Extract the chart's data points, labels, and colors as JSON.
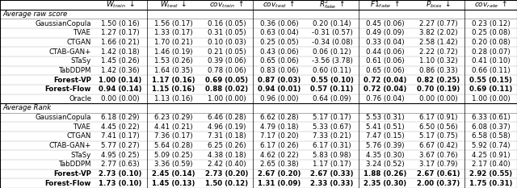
{
  "section1_label": "Average raw score",
  "section2_label": "Average Rank",
  "col_headers": [
    "",
    "W_train",
    "W_test",
    "cov_train",
    "cov_test",
    "R2_fake",
    "F1_fake",
    "P_bias",
    "cov_rate"
  ],
  "rows_section1": [
    [
      "GaussianCopula",
      "1.50 (0.16)",
      "1.56 (0.17)",
      "0.16 (0.05)",
      "0.36 (0.06)",
      "0.20 (0.14)",
      "0.45 (0.06)",
      "2.27 (0.77)",
      "0.23 (0.12)"
    ],
    [
      "TVAE",
      "1.27 (0.17)",
      "1.33 (0.17)",
      "0.31 (0.05)",
      "0.63 (0.04)",
      "-0.31 (0.57)",
      "0.49 (0.09)",
      "3.82 (2.02)",
      "0.25 (0.08)"
    ],
    [
      "CTGAN",
      "1.66 (0.21)",
      "1.70 (0.21)",
      "0.10 (0.03)",
      "0.25 (0.05)",
      "-0.34 (0.08)",
      "0.33 (0.04)",
      "2.58 (1.42)",
      "0.20 (0.08)"
    ],
    [
      "CTAB-GAN+",
      "1.42 (0.18)",
      "1.46 (0.19)",
      "0.21 (0.05)",
      "0.43 (0.06)",
      "0.06 (0.12)",
      "0.44 (0.06)",
      "2.22 (0.72)",
      "0.28 (0.07)"
    ],
    [
      "STaSy",
      "1.45 (0.26)",
      "1.53 (0.26)",
      "0.39 (0.06)",
      "0.65 (0.06)",
      "-3.56 (3.78)",
      "0.61 (0.06)",
      "1.10 (0.32)",
      "0.41 (0.10)"
    ],
    [
      "TabDDPM",
      "1.42 (0.36)",
      "1.64 (0.35)",
      "0.78 (0.06)",
      "0.83 (0.06)",
      "0.60 (0.11)",
      "0.65 (0.06)",
      "0.86 (0.33)",
      "0.66 (0.11)"
    ],
    [
      "Forest-VP",
      "1.00 (0.14)",
      "1.17 (0.16)",
      "0.69 (0.05)",
      "0.87 (0.03)",
      "0.55 (0.10)",
      "0.72 (0.04)",
      "0.82 (0.25)",
      "0.55 (0.15)"
    ],
    [
      "Forest-Flow",
      "0.94 (0.14)",
      "1.15 (0.16)",
      "0.88 (0.02)",
      "0.94 (0.01)",
      "0.57 (0.11)",
      "0.72 (0.04)",
      "0.70 (0.19)",
      "0.69 (0.11)"
    ],
    [
      "Oracle",
      "0.00 (0.00)",
      "1.13 (0.16)",
      "1.00 (0.00)",
      "0.96 (0.00)",
      "0.64 (0.09)",
      "0.76 (0.04)",
      "0.00 (0.00)",
      "1.00 (0.00)"
    ]
  ],
  "bold_rows_section1": [
    6,
    7
  ],
  "rows_section2": [
    [
      "GaussianCopula",
      "6.18 (0.29)",
      "6.23 (0.29)",
      "6.46 (0.28)",
      "6.62 (0.28)",
      "5.17 (0.17)",
      "5.53 (0.31)",
      "6.17 (0.91)",
      "6.33 (0.61)"
    ],
    [
      "TVAE",
      "4.45 (0.22)",
      "4.41 (0.21)",
      "4.96 (0.19)",
      "4.79 (0.18)",
      "5.33 (0.67)",
      "5.41 (0.51)",
      "6.50 (0.56)",
      "6.08 (0.37)"
    ],
    [
      "CTGAN",
      "7.41 (0.17)",
      "7.36 (0.17)",
      "7.31 (0.18)",
      "7.17 (0.20)",
      "7.33 (0.21)",
      "7.47 (0.15)",
      "5.17 (0.75)",
      "6.58 (0.58)"
    ],
    [
      "CTAB-GAN+",
      "5.77 (0.27)",
      "5.64 (0.28)",
      "6.25 (0.26)",
      "6.17 (0.26)",
      "6.17 (0.31)",
      "5.76 (0.39)",
      "6.67 (0.42)",
      "5.92 (0.74)"
    ],
    [
      "STaSy",
      "4.95 (0.25)",
      "5.09 (0.25)",
      "4.38 (0.18)",
      "4.62 (0.22)",
      "5.83 (0.98)",
      "4.35 (0.30)",
      "3.67 (0.76)",
      "4.25 (0.91)"
    ],
    [
      "TabDDPM",
      "2.77 (0.63)",
      "3.36 (0.59)",
      "2.42 (0.40)",
      "2.65 (0.38)",
      "1.17 (0.17)",
      "3.24 (0.52)",
      "3.17 (0.79)",
      "2.17 (0.40)"
    ],
    [
      "Forest-VP",
      "2.73 (0.10)",
      "2.45 (0.14)",
      "2.73 (0.20)",
      "2.67 (0.20)",
      "2.67 (0.33)",
      "1.88 (0.26)",
      "2.67 (0.61)",
      "2.92 (0.55)"
    ],
    [
      "Forest-Flow",
      "1.73 (0.10)",
      "1.45 (0.13)",
      "1.50 (0.12)",
      "1.31 (0.09)",
      "2.33 (0.33)",
      "2.35 (0.30)",
      "2.00 (0.37)",
      "1.75 (0.31)"
    ]
  ],
  "bold_rows_section2": [
    6,
    7
  ],
  "font_size": 6.2,
  "header_font_size": 6.5
}
